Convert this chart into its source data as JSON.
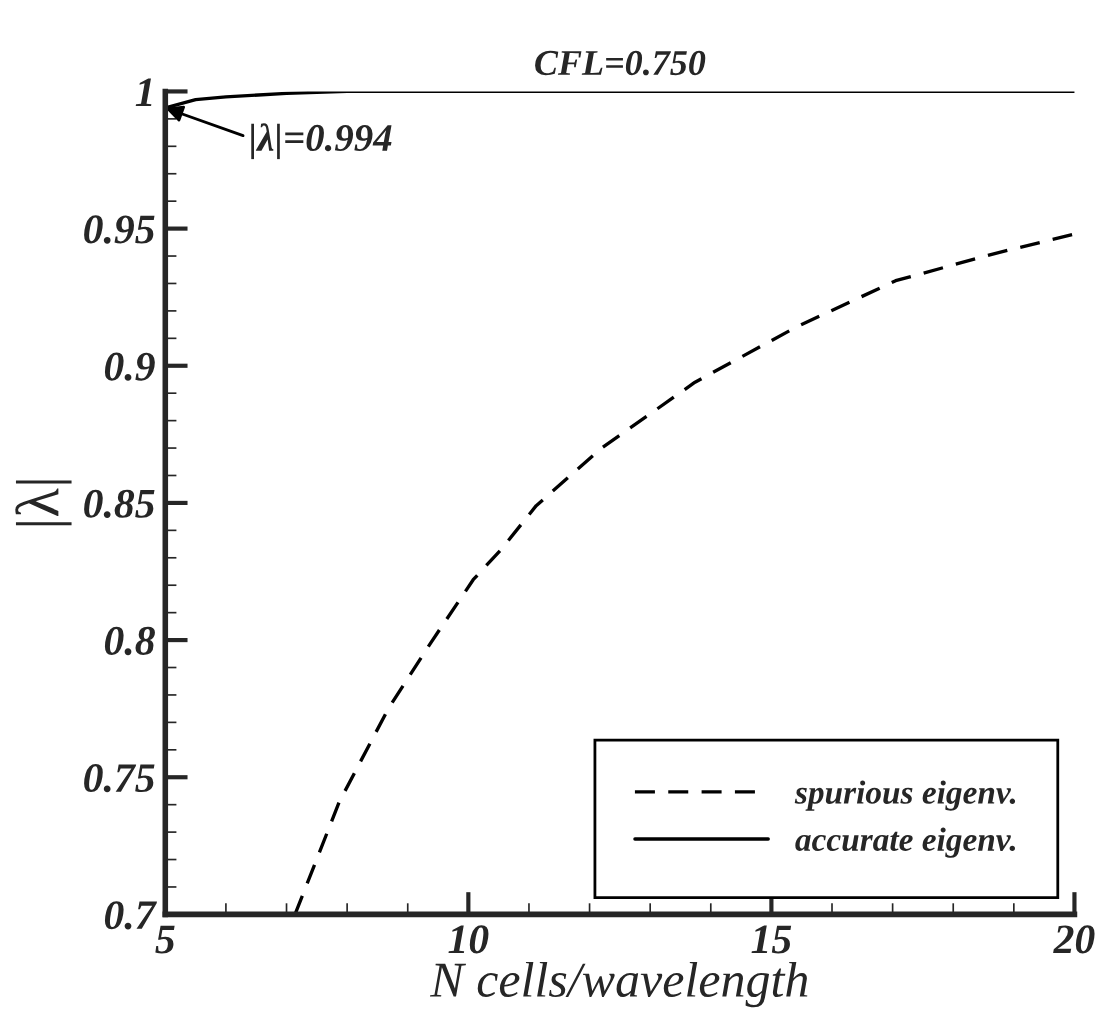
{
  "chart_data": {
    "type": "line",
    "title": "CFL=0.750",
    "xlabel": "N cells/wavelength",
    "ylabel": "|λ|",
    "xlim": [
      5,
      20
    ],
    "ylim": [
      0.7,
      1
    ],
    "xticks": [
      5,
      10,
      15,
      20
    ],
    "yticks": [
      0.7,
      0.75,
      0.8,
      0.85,
      0.9,
      0.95,
      1
    ],
    "grid": false,
    "legend": "bottom right",
    "marker": "none",
    "annotations": [
      {
        "text": "|λ|=0.994",
        "x": 5,
        "y": 0.994
      }
    ],
    "series": [
      {
        "name": "spurious eigenv.",
        "color": "#000000",
        "line_style": "dashed",
        "x": [
          7.14,
          7.87,
          8.68,
          9.38,
          10.08,
          10.54,
          11.12,
          12.2,
          13.74,
          15.4,
          17.05,
          18.7,
          20
        ],
        "values": [
          0.7,
          0.741,
          0.775,
          0.799,
          0.822,
          0.833,
          0.849,
          0.87,
          0.894,
          0.914,
          0.931,
          0.941,
          0.948
        ]
      },
      {
        "name": "accurate eigenv.",
        "color": "#000000",
        "line_style": "solid",
        "x": [
          5,
          5.5,
          6,
          7,
          8,
          20
        ],
        "values": [
          0.994,
          0.997,
          0.998,
          0.9993,
          1,
          1
        ]
      }
    ]
  }
}
